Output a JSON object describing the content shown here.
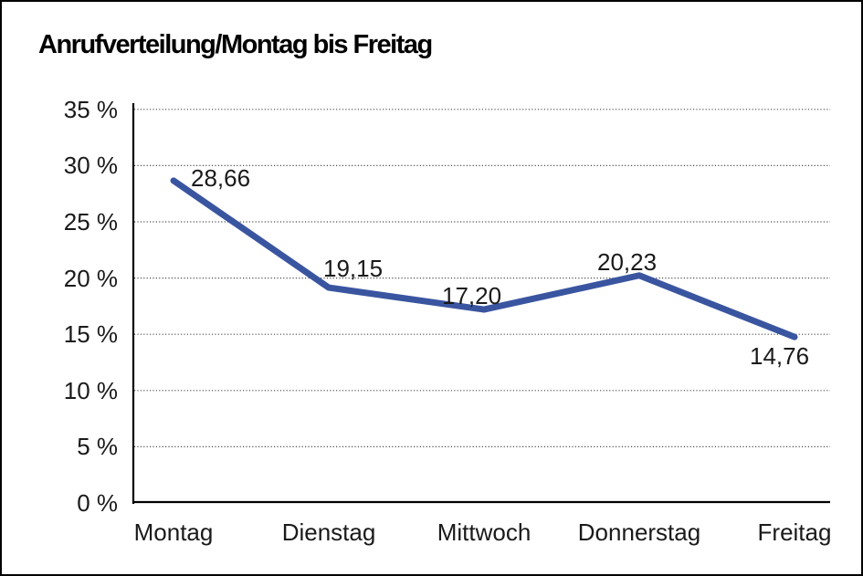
{
  "page": {
    "title": "Anrufverteilung/Montag bis Freitag"
  },
  "chart_data": {
    "type": "line",
    "title": "Anrufverteilung/Montag bis Freitag",
    "categories": [
      "Montag",
      "Dienstag",
      "Mittwoch",
      "Donnerstag",
      "Freitag"
    ],
    "values": [
      28.66,
      19.15,
      17.2,
      20.23,
      14.76
    ],
    "point_labels": [
      "28,66",
      "19,15",
      "17,20",
      "20,23",
      "14,76"
    ],
    "xlabel": "",
    "ylabel": "",
    "ylim": [
      0,
      35
    ],
    "y_tick_values": [
      35,
      30,
      25,
      20,
      15,
      10,
      5,
      0
    ],
    "y_tick_labels": [
      "35 %",
      "30 %",
      "25 %",
      "20 %",
      "15 %",
      "10 %",
      "5 %",
      "0 %"
    ],
    "grid": "horizontal-dotted",
    "legend": "none",
    "colors": {
      "line": "#3A55A0",
      "axis": "#000000",
      "gridline": "#4d4d4d",
      "text": "#1a1a1a"
    }
  }
}
